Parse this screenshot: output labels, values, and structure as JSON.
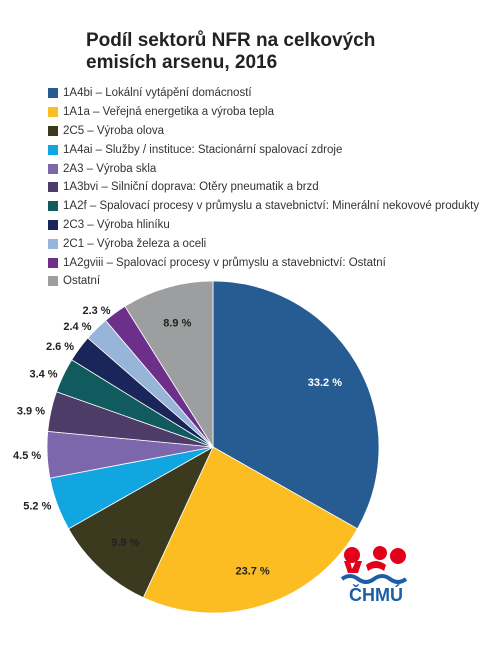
{
  "chart_data": {
    "type": "pie",
    "title": "Podíl sektorů NFR na celkových emisích arsenu, 2016",
    "legend_position": "top",
    "slices": [
      {
        "name": "1A4bi – Lokální vytápění domácností",
        "value": 33.2,
        "label": "33.2 %",
        "color": "#265c92",
        "label_color": "#ffffff"
      },
      {
        "name": "1A1a – Veřejná energetika a výroba tepla",
        "value": 23.7,
        "label": "23.7 %",
        "color": "#fbbd22",
        "label_color": "#222222"
      },
      {
        "name": "2C5 – Výroba olova",
        "value": 9.9,
        "label": "9.9 %",
        "color": "#3b3a1f",
        "label_color": "#222222"
      },
      {
        "name": "1A4ai – Služby / instituce: Stacionární spalovací zdroje",
        "value": 5.2,
        "label": "5.2 %",
        "color": "#12a6e1",
        "label_color": "#222222"
      },
      {
        "name": "2A3 – Výroba skla",
        "value": 4.5,
        "label": "4.5 %",
        "color": "#7d67ac",
        "label_color": "#222222"
      },
      {
        "name": "1A3bvi – Silniční doprava: Otěry pneumatik a brzd",
        "value": 3.9,
        "label": "3.9 %",
        "color": "#4e3c68",
        "label_color": "#222222"
      },
      {
        "name": "1A2f – Spalovací procesy v průmyslu a stavebnictví: Minerální nekovové produkty",
        "value": 3.4,
        "label": "3.4 %",
        "color": "#115a5e",
        "label_color": "#222222"
      },
      {
        "name": "2C3 – Výroba hliníku",
        "value": 2.6,
        "label": "2.6 %",
        "color": "#1a2559",
        "label_color": "#222222"
      },
      {
        "name": "2C1 – Výroba železa a oceli",
        "value": 2.4,
        "label": "2.4 %",
        "color": "#96b5d9",
        "label_color": "#222222"
      },
      {
        "name": "1A2gviii – Spalovací procesy v průmyslu a stavebnictví: Ostatní",
        "value": 2.3,
        "label": "2.3 %",
        "color": "#6c2f8a",
        "label_color": "#222222"
      },
      {
        "name": "Ostatní",
        "value": 8.9,
        "label": "8.9 %",
        "color": "#9d9e9f",
        "label_color": "#222222"
      }
    ]
  },
  "logo": {
    "text": "ČHMÚ",
    "colors": {
      "red": "#e2001a",
      "blue": "#1a5ea8"
    }
  }
}
